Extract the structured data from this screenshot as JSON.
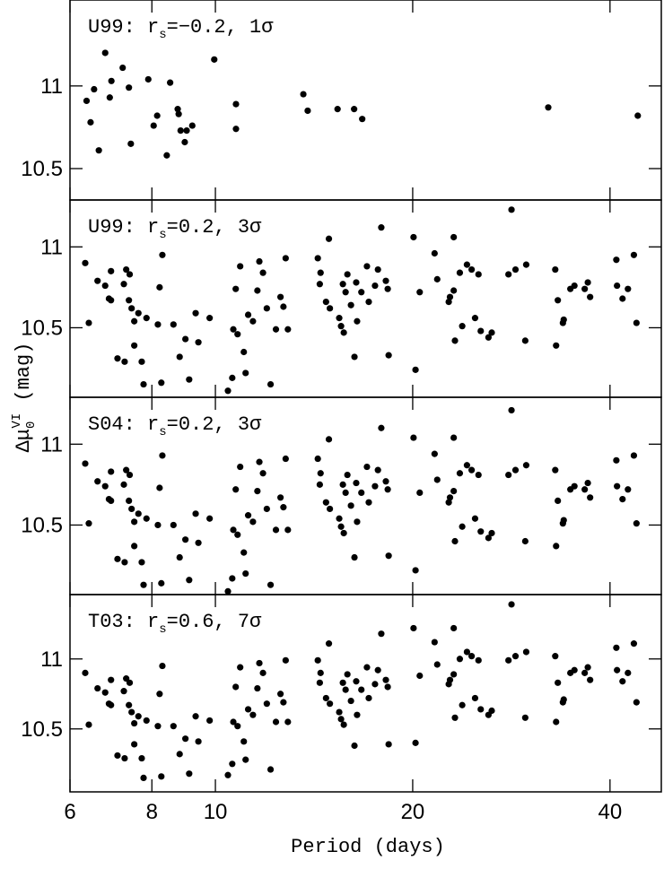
{
  "chart_data": {
    "type": "scatter",
    "xscale": "log",
    "xlim": [
      6,
      47.9
    ],
    "xticks": [
      6,
      8,
      10,
      20,
      40
    ],
    "xlabel": "Period (days)",
    "ylabel": [
      "Δμ",
      "0",
      "VI",
      " (mag)"
    ],
    "color": "#000000",
    "panels": [
      {
        "annotation": [
          "U99: r",
          "s",
          "=−0.2, 1σ"
        ],
        "ylim": [
          10.31,
          11.52
        ],
        "yticks": [
          10.5,
          11
        ],
        "x": [
          6.36,
          6.45,
          6.53,
          6.64,
          6.79,
          6.9,
          6.94,
          7.22,
          7.38,
          7.43,
          7.9,
          8.05,
          8.15,
          8.43,
          8.53,
          8.76,
          8.79,
          8.85,
          8.98,
          9.04,
          9.22,
          9.96,
          10.75,
          10.75,
          13.62,
          13.83,
          15.36,
          16.28,
          16.75,
          32.2,
          44.1
        ],
        "values": [
          10.91,
          10.78,
          10.98,
          10.61,
          11.2,
          10.93,
          11.03,
          11.11,
          10.99,
          10.65,
          11.04,
          10.76,
          10.82,
          10.58,
          11.02,
          10.86,
          10.83,
          10.73,
          10.66,
          10.73,
          10.76,
          11.16,
          10.89,
          10.74,
          10.95,
          10.85,
          10.86,
          10.86,
          10.8,
          10.87,
          10.82
        ]
      },
      {
        "annotation": [
          "U99: r",
          "s",
          "=0.2, 3σ"
        ],
        "ylim": [
          10.07,
          11.29
        ],
        "yticks": [
          10.5,
          11
        ],
        "x": [
          6.33,
          6.41,
          6.61,
          6.79,
          6.88,
          6.93,
          6.93,
          7.09,
          7.25,
          7.27,
          7.31,
          7.38,
          7.4,
          7.45,
          7.52,
          7.52,
          7.63,
          7.72,
          7.77,
          7.85,
          8.17,
          8.22,
          8.27,
          8.3,
          8.63,
          8.82,
          9.0,
          9.12,
          9.33,
          9.42,
          9.8,
          10.45,
          10.61,
          10.65,
          10.74,
          10.81,
          10.91,
          11.05,
          11.12,
          11.22,
          11.41,
          11.59,
          11.67,
          11.82,
          11.98,
          12.14,
          12.37,
          12.57,
          12.7,
          12.8,
          12.9,
          14.33,
          14.43,
          14.47,
          14.75,
          14.9,
          14.95,
          15.45,
          15.55,
          15.65,
          15.7,
          15.8,
          15.9,
          16.1,
          16.3,
          16.4,
          16.45,
          16.7,
          17.03,
          17.14,
          17.52,
          17.7,
          17.91,
          18.2,
          18.32,
          18.38,
          20.06,
          20.2,
          20.5,
          21.6,
          21.8,
          22.7,
          22.8,
          23.1,
          23.1,
          23.2,
          23.6,
          23.8,
          24.2,
          24.6,
          24.9,
          25.2,
          25.4,
          26.1,
          26.4,
          28.0,
          28.3,
          28.7,
          29.7,
          29.8,
          33.0,
          33.1,
          33.3,
          33.9,
          34.0,
          34.8,
          35.3,
          36.6,
          37.0,
          37.3,
          40.9,
          41.0,
          41.8,
          42.6,
          43.5,
          43.9
        ],
        "values": [
          10.9,
          10.53,
          10.79,
          10.76,
          10.68,
          10.85,
          10.67,
          10.31,
          10.77,
          10.29,
          10.86,
          10.67,
          10.83,
          10.62,
          10.39,
          10.54,
          10.59,
          10.29,
          10.15,
          10.56,
          10.52,
          10.75,
          10.16,
          10.95,
          10.52,
          10.32,
          10.43,
          10.18,
          10.59,
          10.41,
          10.56,
          10.11,
          10.19,
          10.49,
          10.74,
          10.46,
          10.88,
          10.35,
          10.22,
          10.58,
          10.54,
          10.73,
          10.91,
          10.84,
          10.62,
          10.15,
          10.49,
          10.69,
          10.63,
          10.93,
          10.49,
          10.93,
          10.77,
          10.84,
          10.66,
          11.05,
          10.62,
          10.56,
          10.51,
          10.77,
          10.47,
          10.72,
          10.83,
          10.64,
          10.32,
          10.78,
          10.54,
          10.72,
          10.88,
          10.66,
          10.76,
          10.86,
          11.12,
          10.79,
          10.74,
          10.33,
          11.06,
          10.24,
          10.72,
          10.96,
          10.8,
          10.66,
          10.69,
          11.06,
          10.73,
          10.42,
          10.84,
          10.51,
          10.89,
          10.86,
          10.56,
          10.83,
          10.48,
          10.44,
          10.47,
          10.83,
          11.23,
          10.86,
          10.42,
          10.89,
          10.86,
          10.39,
          10.67,
          10.53,
          10.55,
          10.74,
          10.76,
          10.74,
          10.78,
          10.69,
          10.92,
          10.76,
          10.68,
          10.74,
          10.95,
          10.53
        ]
      },
      {
        "annotation": [
          "S04: r",
          "s",
          "=0.2, 3σ"
        ],
        "ylim": [
          10.07,
          11.29
        ],
        "yticks": [
          10.5,
          11
        ],
        "x": [
          6.33,
          6.41,
          6.61,
          6.79,
          6.88,
          6.93,
          6.93,
          7.09,
          7.25,
          7.27,
          7.31,
          7.38,
          7.4,
          7.45,
          7.52,
          7.52,
          7.63,
          7.72,
          7.77,
          7.85,
          8.17,
          8.22,
          8.27,
          8.3,
          8.63,
          8.82,
          9.0,
          9.12,
          9.33,
          9.42,
          9.8,
          10.45,
          10.61,
          10.65,
          10.74,
          10.81,
          10.91,
          11.05,
          11.12,
          11.22,
          11.41,
          11.59,
          11.67,
          11.82,
          11.98,
          12.14,
          12.37,
          12.57,
          12.7,
          12.8,
          12.9,
          14.33,
          14.43,
          14.47,
          14.75,
          14.9,
          14.95,
          15.45,
          15.55,
          15.65,
          15.7,
          15.8,
          15.9,
          16.1,
          16.3,
          16.4,
          16.45,
          16.7,
          17.03,
          17.14,
          17.52,
          17.7,
          17.91,
          18.2,
          18.32,
          18.38,
          20.06,
          20.2,
          20.5,
          21.6,
          21.8,
          22.7,
          22.8,
          23.1,
          23.1,
          23.2,
          23.6,
          23.8,
          24.2,
          24.6,
          24.9,
          25.2,
          25.4,
          26.1,
          26.4,
          28.0,
          28.3,
          28.7,
          29.7,
          29.8,
          33.0,
          33.1,
          33.3,
          33.9,
          34.0,
          34.8,
          35.3,
          36.6,
          37.0,
          37.3,
          40.9,
          41.0,
          41.8,
          42.6,
          43.5,
          43.9
        ],
        "values": [
          10.88,
          10.51,
          10.77,
          10.74,
          10.66,
          10.83,
          10.65,
          10.29,
          10.75,
          10.27,
          10.84,
          10.65,
          10.81,
          10.6,
          10.37,
          10.52,
          10.57,
          10.27,
          10.13,
          10.54,
          10.5,
          10.73,
          10.14,
          10.93,
          10.5,
          10.3,
          10.41,
          10.16,
          10.57,
          10.39,
          10.54,
          10.09,
          10.17,
          10.47,
          10.72,
          10.44,
          10.86,
          10.33,
          10.2,
          10.56,
          10.52,
          10.71,
          10.89,
          10.82,
          10.6,
          10.13,
          10.47,
          10.67,
          10.61,
          10.91,
          10.47,
          10.91,
          10.75,
          10.82,
          10.64,
          11.03,
          10.6,
          10.54,
          10.49,
          10.75,
          10.45,
          10.7,
          10.81,
          10.62,
          10.3,
          10.76,
          10.52,
          10.7,
          10.86,
          10.64,
          10.74,
          10.84,
          11.1,
          10.77,
          10.72,
          10.31,
          11.04,
          10.22,
          10.7,
          10.94,
          10.78,
          10.64,
          10.67,
          11.04,
          10.71,
          10.4,
          10.82,
          10.49,
          10.87,
          10.84,
          10.54,
          10.81,
          10.46,
          10.42,
          10.45,
          10.81,
          11.21,
          10.84,
          10.4,
          10.87,
          10.84,
          10.37,
          10.65,
          10.51,
          10.53,
          10.72,
          10.74,
          10.72,
          10.76,
          10.67,
          10.9,
          10.74,
          10.66,
          10.72,
          10.93,
          10.51
        ]
      },
      {
        "annotation": [
          "T03: r",
          "s",
          "=0.6, 7σ"
        ],
        "ylim": [
          10.05,
          11.46
        ],
        "yticks": [
          10.5,
          11
        ],
        "x": [
          6.33,
          6.41,
          6.61,
          6.79,
          6.88,
          6.93,
          6.93,
          7.09,
          7.25,
          7.27,
          7.31,
          7.38,
          7.4,
          7.45,
          7.52,
          7.52,
          7.63,
          7.72,
          7.77,
          7.85,
          8.17,
          8.22,
          8.27,
          8.3,
          8.63,
          8.82,
          9.0,
          9.12,
          9.33,
          9.42,
          9.8,
          10.45,
          10.61,
          10.65,
          10.74,
          10.81,
          10.91,
          11.05,
          11.12,
          11.22,
          11.41,
          11.59,
          11.67,
          11.82,
          11.98,
          12.14,
          12.37,
          12.57,
          12.7,
          12.8,
          12.9,
          14.33,
          14.43,
          14.47,
          14.75,
          14.9,
          14.95,
          15.45,
          15.55,
          15.65,
          15.7,
          15.8,
          15.9,
          16.1,
          16.3,
          16.4,
          16.45,
          16.7,
          17.03,
          17.14,
          17.52,
          17.7,
          17.91,
          18.2,
          18.32,
          18.38,
          20.06,
          20.2,
          20.5,
          21.6,
          21.8,
          22.7,
          22.8,
          23.1,
          23.1,
          23.2,
          23.6,
          23.8,
          24.2,
          24.6,
          24.9,
          25.2,
          25.4,
          26.1,
          26.4,
          28.0,
          28.3,
          28.7,
          29.7,
          29.8,
          33.0,
          33.1,
          33.3,
          33.9,
          34.0,
          34.8,
          35.3,
          36.6,
          37.0,
          37.3,
          40.9,
          41.0,
          41.8,
          42.6,
          43.5,
          43.9
        ],
        "values": [
          10.9,
          10.53,
          10.79,
          10.76,
          10.68,
          10.85,
          10.67,
          10.31,
          10.77,
          10.29,
          10.86,
          10.67,
          10.83,
          10.62,
          10.39,
          10.54,
          10.59,
          10.29,
          10.15,
          10.56,
          10.52,
          10.75,
          10.16,
          10.95,
          10.52,
          10.32,
          10.43,
          10.18,
          10.59,
          10.41,
          10.56,
          10.17,
          10.25,
          10.55,
          10.8,
          10.52,
          10.94,
          10.41,
          10.28,
          10.64,
          10.6,
          10.79,
          10.97,
          10.9,
          10.68,
          10.21,
          10.55,
          10.75,
          10.69,
          10.99,
          10.55,
          10.99,
          10.83,
          10.9,
          10.72,
          11.11,
          10.68,
          10.62,
          10.57,
          10.83,
          10.53,
          10.78,
          10.89,
          10.7,
          10.38,
          10.84,
          10.6,
          10.78,
          10.94,
          10.72,
          10.82,
          10.92,
          11.18,
          10.85,
          10.8,
          10.39,
          11.22,
          10.4,
          10.88,
          11.12,
          10.96,
          10.82,
          10.85,
          11.22,
          10.89,
          10.58,
          11.0,
          10.67,
          11.05,
          11.02,
          10.72,
          10.99,
          10.64,
          10.6,
          10.63,
          10.99,
          11.39,
          11.02,
          10.58,
          11.05,
          11.02,
          10.55,
          10.83,
          10.69,
          10.71,
          10.9,
          10.92,
          10.9,
          10.94,
          10.85,
          11.08,
          10.92,
          10.84,
          10.9,
          11.11,
          10.69
        ]
      }
    ]
  }
}
